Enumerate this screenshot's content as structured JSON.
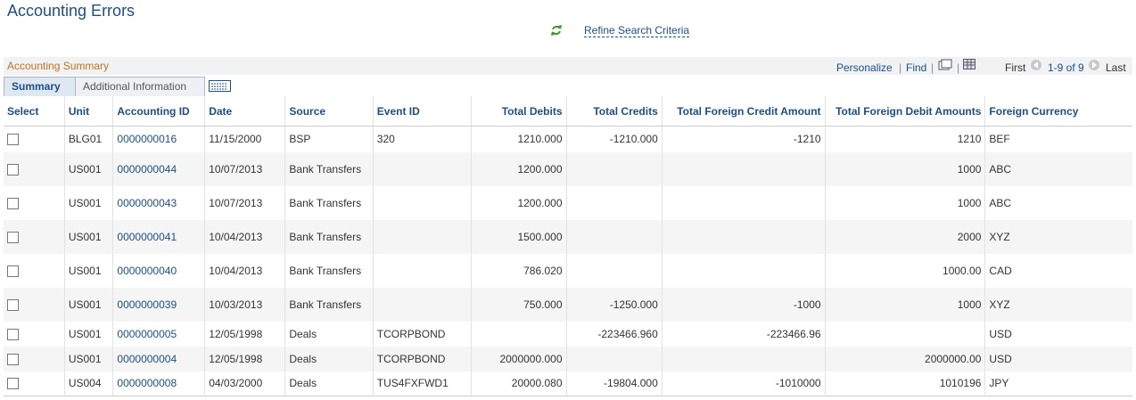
{
  "header": {
    "title": "Accounting Errors",
    "refine": "Refine Search Criteria"
  },
  "grid": {
    "title": "Accounting Summary",
    "toolbar": {
      "personalize": "Personalize",
      "find": "Find",
      "first": "First",
      "range": "1-9 of 9",
      "last": "Last"
    },
    "tabs": [
      "Summary",
      "Additional Information"
    ],
    "columns": [
      "Select",
      "Unit",
      "Accounting ID",
      "Date",
      "Source",
      "Event ID",
      "Total Debits",
      "Total Credits",
      "Total Foreign Credit Amount",
      "Total Foreign Debit Amounts",
      "Foreign Currency"
    ],
    "rows": [
      [
        "BLG01",
        "0000000016",
        "11/15/2000",
        "BSP",
        "320",
        "1210.000",
        "-1210.000",
        "-1210",
        "1210",
        "BEF"
      ],
      [
        "US001",
        "0000000044",
        "10/07/2013",
        "Bank Transfers",
        null,
        "1200.000",
        null,
        null,
        "1000",
        "ABC"
      ],
      [
        "US001",
        "0000000043",
        "10/07/2013",
        "Bank Transfers",
        null,
        "1200.000",
        null,
        null,
        "1000",
        "ABC"
      ],
      [
        "US001",
        "0000000041",
        "10/04/2013",
        "Bank Transfers",
        null,
        "1500.000",
        null,
        null,
        "2000",
        "XYZ"
      ],
      [
        "US001",
        "0000000040",
        "10/04/2013",
        "Bank Transfers",
        null,
        "786.020",
        null,
        null,
        "1000.00",
        "CAD"
      ],
      [
        "US001",
        "0000000039",
        "10/03/2013",
        "Bank Transfers",
        null,
        "750.000",
        "-1250.000",
        "-1000",
        "1000",
        "XYZ"
      ],
      [
        "US001",
        "0000000005",
        "12/05/1998",
        "Deals",
        "TCORPBOND",
        null,
        "-223466.960",
        "-223466.96",
        null,
        "USD"
      ],
      [
        "US001",
        "0000000004",
        "12/05/1998",
        "Deals",
        "TCORPBOND",
        "2000000.000",
        null,
        null,
        "2000000.00",
        "USD"
      ],
      [
        "US004",
        "0000000008",
        "04/03/2000",
        "Deals",
        "TUS4FXFWD1",
        "20000.080",
        "-19804.000",
        "-1010000",
        "1010196",
        "JPY"
      ]
    ]
  }
}
